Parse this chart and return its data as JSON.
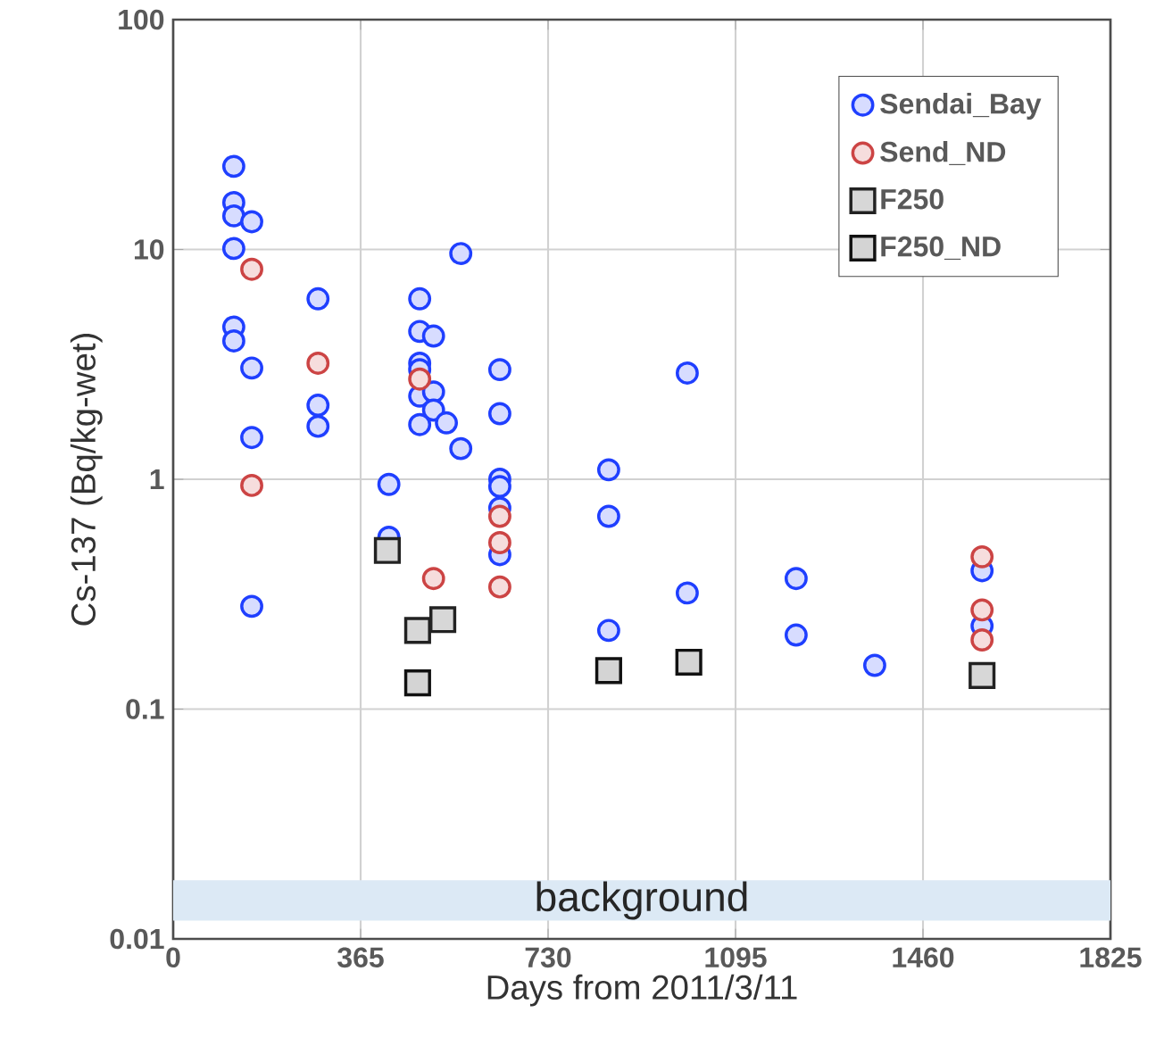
{
  "chart_data": {
    "type": "scatter",
    "xlabel": "Days from 2011/3/11",
    "ylabel": "Cs-137 (Bq/kg-wet)",
    "xlim": [
      0,
      1825
    ],
    "xticks": [
      0,
      365,
      730,
      1095,
      1460,
      1825
    ],
    "ylim": [
      0.01,
      100
    ],
    "yticks": [
      0.01,
      0.1,
      1,
      10,
      100
    ],
    "log": "y",
    "grid": true,
    "legend": "top right",
    "series": [
      {
        "name": "Sendai_Bay",
        "color": "#1f3fff",
        "marker": "circle",
        "x": [
          118,
          118,
          118,
          153,
          118,
          118,
          118,
          153,
          153,
          153,
          282,
          282,
          282,
          420,
          420,
          480,
          480,
          507,
          480,
          480,
          480,
          507,
          507,
          480,
          532,
          560,
          560,
          636,
          636,
          636,
          636,
          636,
          636,
          848,
          848,
          848,
          1001,
          1001,
          1213,
          1213,
          1366,
          1575,
          1575
        ],
        "values": [
          23,
          16,
          14,
          13.2,
          10.1,
          4.6,
          4.0,
          3.05,
          1.52,
          0.28,
          6.1,
          2.1,
          1.7,
          0.95,
          0.56,
          6.1,
          4.4,
          4.2,
          3.2,
          3.0,
          2.3,
          2.4,
          2.0,
          1.73,
          1.76,
          1.36,
          9.6,
          3.0,
          1.93,
          1.0,
          0.93,
          0.75,
          0.47,
          1.1,
          0.69,
          0.22,
          2.9,
          0.32,
          0.37,
          0.21,
          0.155,
          0.4,
          0.23
        ]
      },
      {
        "name": "Send_ND",
        "color": "#cc4444",
        "marker": "circle",
        "x": [
          153,
          153,
          282,
          480,
          507,
          636,
          636,
          636,
          1575,
          1575,
          1575
        ],
        "values": [
          8.2,
          0.94,
          3.2,
          2.73,
          0.37,
          0.69,
          0.53,
          0.34,
          0.46,
          0.27,
          0.2
        ]
      },
      {
        "name": "F250",
        "color": "#222222",
        "marker": "square",
        "x": [
          417,
          476,
          525,
          1575
        ],
        "values": [
          0.49,
          0.22,
          0.245,
          0.14
        ]
      },
      {
        "name": "F250_ND",
        "color": "#111111",
        "marker": "square",
        "x": [
          476,
          848,
          1004
        ],
        "values": [
          0.13,
          0.147,
          0.16
        ]
      }
    ],
    "bands": [
      {
        "axis": "y",
        "from": 0.012,
        "to": 0.018,
        "label": "background",
        "color": "#dce9f5"
      }
    ]
  }
}
